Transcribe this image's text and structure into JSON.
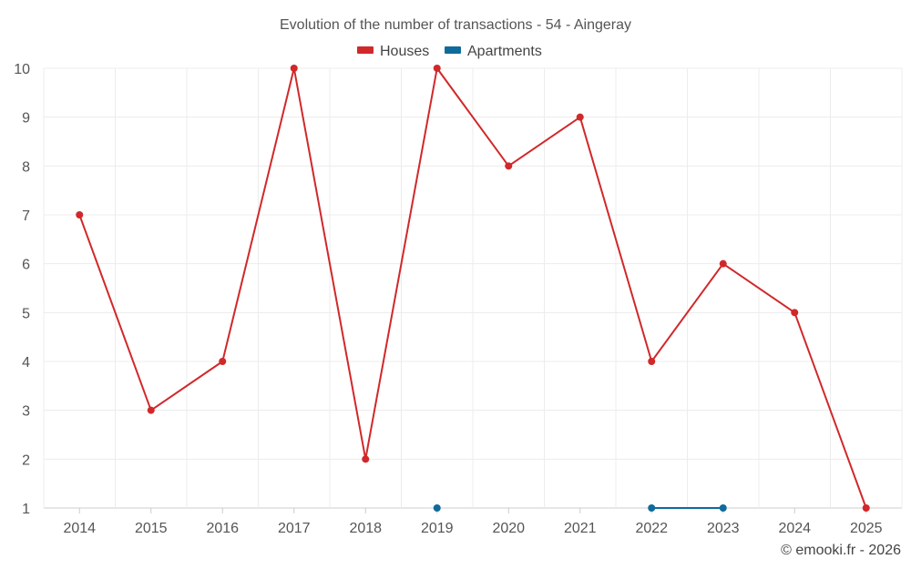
{
  "chart_data": {
    "type": "line",
    "title": "Evolution of the number of transactions - 54 - Aingeray",
    "categories": [
      "2014",
      "2015",
      "2016",
      "2017",
      "2018",
      "2019",
      "2020",
      "2021",
      "2022",
      "2023",
      "2024",
      "2025"
    ],
    "ylim": [
      1,
      10
    ],
    "yticks": [
      "1",
      "2",
      "3",
      "4",
      "5",
      "6",
      "7",
      "8",
      "9",
      "10"
    ],
    "grid": true,
    "legend_position": "top-center",
    "series": [
      {
        "name": "Houses",
        "color": "#d1282a",
        "values": [
          7,
          3,
          4,
          10,
          2,
          10,
          8,
          9,
          4,
          6,
          5,
          1
        ]
      },
      {
        "name": "Apartments",
        "color": "#0f6b9b",
        "values": [
          null,
          null,
          null,
          null,
          null,
          1,
          null,
          null,
          1,
          1,
          null,
          null
        ]
      }
    ],
    "credit": "© emooki.fr - 2026"
  }
}
